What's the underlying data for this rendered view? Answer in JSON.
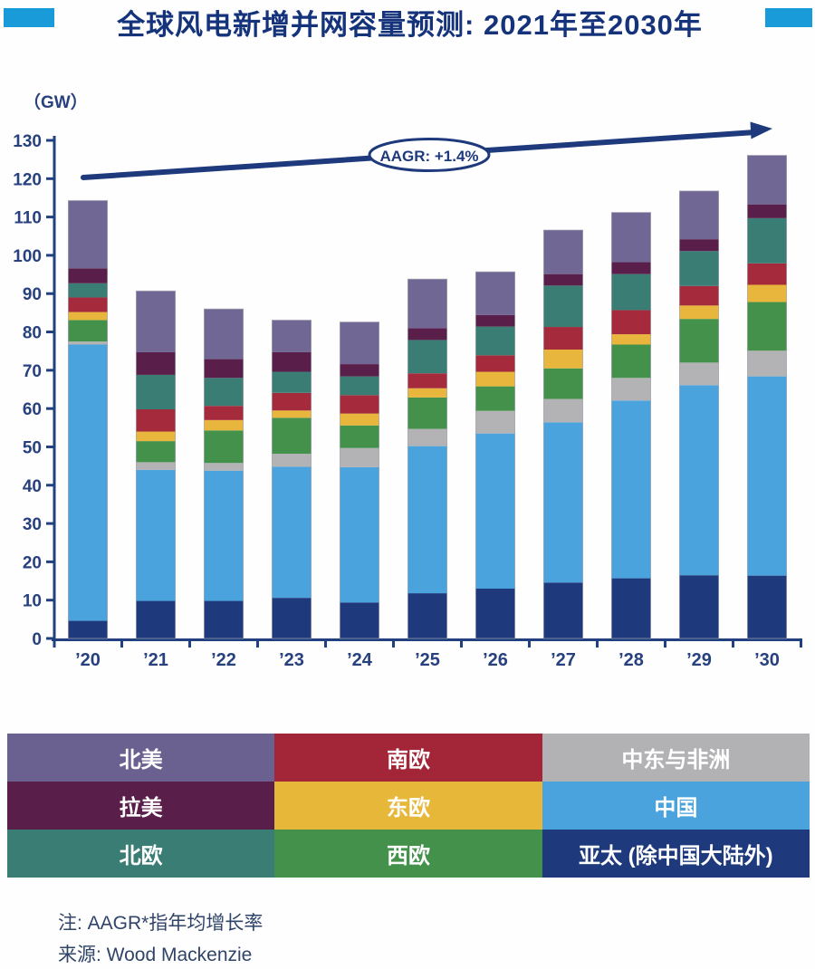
{
  "header": {
    "title": "全球风电新增并网容量预测: 2021年至2030年",
    "accent_color": "#189bd8",
    "title_color": "#15337b"
  },
  "chart_data": {
    "type": "bar",
    "stacked": true,
    "title": "全球风电新增并网容量预测: 2021年至2030年",
    "ylabel": "（GW）",
    "xlabel": "",
    "ylim": [
      0,
      130
    ],
    "ytick_step": 10,
    "grid": false,
    "categories": [
      "’20",
      "’21",
      "’22",
      "’23",
      "’24",
      "’25",
      "’26",
      "’27",
      "’28",
      "’29",
      "’30"
    ],
    "series": [
      {
        "name": "亚太 (除中国大陆外)",
        "color": "#1e3a7d",
        "values": [
          4.6,
          9.8,
          9.8,
          10.6,
          9.4,
          11.8,
          13.0,
          14.6,
          15.7,
          16.5,
          16.4
        ]
      },
      {
        "name": "中国",
        "color": "#4aa3dc",
        "values": [
          72.1,
          34.2,
          34.0,
          34.2,
          35.3,
          38.4,
          40.5,
          41.8,
          46.4,
          49.6,
          52.0
        ]
      },
      {
        "name": "中东与非洲",
        "color": "#b3b3b6",
        "values": [
          0.8,
          2.0,
          2.0,
          3.4,
          5.0,
          4.5,
          5.9,
          6.1,
          5.9,
          5.9,
          6.7
        ]
      },
      {
        "name": "西欧",
        "color": "#44914c",
        "values": [
          5.6,
          5.5,
          8.5,
          9.4,
          5.9,
          8.2,
          6.4,
          8.0,
          8.7,
          11.4,
          12.7
        ]
      },
      {
        "name": "东欧",
        "color": "#e8b63c",
        "values": [
          2.1,
          2.5,
          2.7,
          1.9,
          3.1,
          2.4,
          3.8,
          4.9,
          2.7,
          3.5,
          4.5
        ]
      },
      {
        "name": "南欧",
        "color": "#a52a3c",
        "values": [
          3.8,
          5.8,
          3.7,
          4.6,
          4.8,
          3.9,
          4.3,
          5.9,
          6.3,
          5.1,
          5.6
        ]
      },
      {
        "name": "北欧",
        "color": "#3a7d74",
        "values": [
          3.7,
          9.0,
          7.3,
          5.5,
          4.9,
          8.7,
          7.5,
          10.8,
          9.4,
          9.1,
          11.8
        ]
      },
      {
        "name": "拉美",
        "color": "#5a1e4b",
        "values": [
          3.9,
          5.9,
          4.9,
          5.1,
          3.2,
          3.1,
          3.0,
          3.0,
          3.1,
          3.1,
          3.6
        ]
      },
      {
        "name": "北美",
        "color": "#716794",
        "values": [
          17.7,
          16.0,
          13.1,
          8.4,
          11.0,
          12.8,
          11.3,
          11.5,
          13.0,
          12.6,
          12.8
        ]
      }
    ],
    "totals": [
      114.3,
      90.7,
      86.0,
      83.1,
      82.6,
      93.8,
      95.7,
      106.6,
      111.2,
      116.8,
      126.1
    ],
    "annotation": {
      "label": "AAGR: +1.4%",
      "arrow_color": "#1e3a7d"
    },
    "axis_color": "#20407f",
    "legend_position": "bottom"
  },
  "legend": {
    "items": [
      {
        "label": "北美",
        "color": "#6b6190"
      },
      {
        "label": "南欧",
        "color": "#a32638"
      },
      {
        "label": "中东与非洲",
        "color": "#b2b2b5"
      },
      {
        "label": "拉美",
        "color": "#5a1e4b"
      },
      {
        "label": "东欧",
        "color": "#e7b73a"
      },
      {
        "label": "中国",
        "color": "#4aa3dc"
      },
      {
        "label": "北欧",
        "color": "#3a7d74"
      },
      {
        "label": "西欧",
        "color": "#44914c"
      },
      {
        "label": "亚太 (除中国大陆外)",
        "color": "#1e3a7d"
      }
    ]
  },
  "notes": {
    "line1": "注: AAGR*指年均增长率",
    "line2": "来源: Wood Mackenzie"
  }
}
